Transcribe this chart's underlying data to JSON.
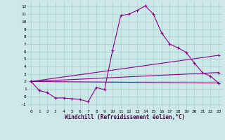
{
  "background_color": "#cce8e8",
  "grid_color": "#aacccc",
  "line_color": "#880088",
  "xlabel": "Windchill (Refroidissement éolien,°C)",
  "xlim": [
    -0.5,
    23.5
  ],
  "ylim": [
    -1.7,
    12.7
  ],
  "yticks": [
    -1,
    0,
    1,
    2,
    3,
    4,
    5,
    6,
    7,
    8,
    9,
    10,
    11,
    12
  ],
  "xticks": [
    0,
    1,
    2,
    3,
    4,
    5,
    6,
    7,
    8,
    9,
    10,
    11,
    12,
    13,
    14,
    15,
    16,
    17,
    18,
    19,
    20,
    21,
    22,
    23
  ],
  "main_series": {
    "x": [
      0,
      1,
      2,
      3,
      4,
      5,
      6,
      7,
      8,
      9,
      10,
      11,
      12,
      13,
      14,
      15,
      16,
      17,
      18,
      19,
      20,
      21,
      22,
      23
    ],
    "y": [
      2.0,
      0.8,
      0.5,
      -0.2,
      -0.2,
      -0.3,
      -0.4,
      -0.7,
      1.2,
      0.9,
      6.2,
      10.8,
      11.0,
      11.5,
      12.1,
      11.0,
      8.5,
      7.0,
      6.5,
      5.9,
      4.5,
      3.2,
      2.7,
      1.8
    ]
  },
  "line1": {
    "x": [
      0,
      23
    ],
    "y": [
      2.0,
      1.8
    ]
  },
  "line2": {
    "x": [
      0,
      23
    ],
    "y": [
      2.0,
      3.2
    ]
  },
  "line3": {
    "x": [
      0,
      23
    ],
    "y": [
      2.0,
      5.5
    ]
  }
}
